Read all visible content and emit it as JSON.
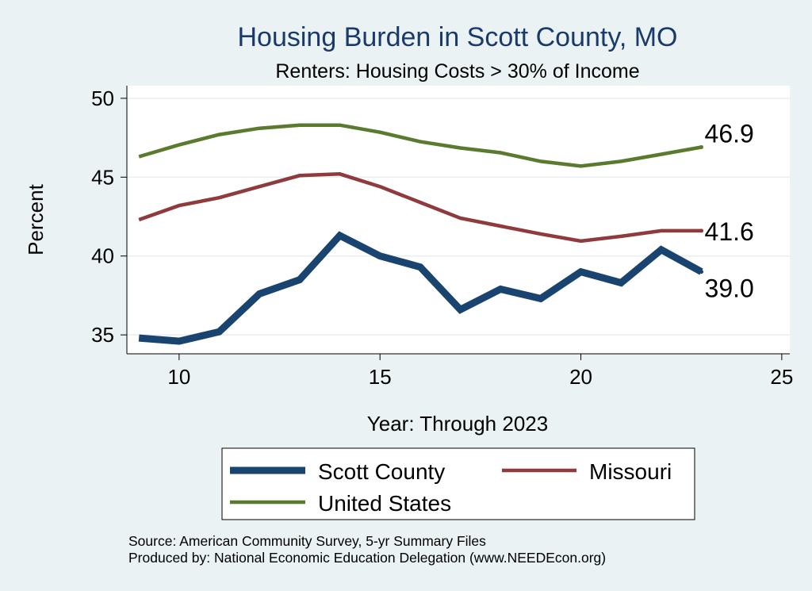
{
  "chart_data": {
    "type": "line",
    "title": "Housing Burden in Scott County, MO",
    "subtitle": "Renters: Housing Costs > 30% of Income",
    "xlabel": "Year: Through 2023",
    "ylabel": "Percent",
    "xlim": [
      8.7,
      25.2
    ],
    "ylim": [
      33.8,
      50.8
    ],
    "xticks": [
      10,
      15,
      20,
      25
    ],
    "yticks": [
      35,
      40,
      45,
      50
    ],
    "grid": true,
    "legend_position": "bottom",
    "x": [
      9,
      10,
      11,
      12,
      13,
      14,
      15,
      16,
      17,
      18,
      19,
      20,
      21,
      22,
      23
    ],
    "series": [
      {
        "name": "Scott County",
        "color": "#1a4470",
        "values": [
          34.8,
          34.6,
          35.2,
          37.6,
          38.5,
          41.3,
          40.0,
          39.3,
          36.6,
          37.9,
          37.3,
          39.0,
          38.3,
          40.4,
          39.0
        ],
        "end_label": "39.0"
      },
      {
        "name": "Missouri",
        "color": "#8f3b3e",
        "values": [
          42.3,
          43.2,
          43.7,
          44.4,
          45.1,
          45.2,
          44.4,
          43.4,
          42.4,
          41.9,
          41.4,
          40.95,
          41.25,
          41.6,
          41.6
        ],
        "end_label": "41.6"
      },
      {
        "name": "United States",
        "color": "#5a7a2e",
        "values": [
          46.3,
          47.05,
          47.7,
          48.1,
          48.3,
          48.3,
          47.85,
          47.25,
          46.85,
          46.55,
          46.0,
          45.7,
          46.0,
          46.45,
          46.9
        ],
        "end_label": "46.9"
      }
    ],
    "notes": [
      "Source: American Community Survey, 5-yr Summary Files",
      "Produced by: National Economic Education Delegation (www.NEEDEcon.org)"
    ]
  }
}
